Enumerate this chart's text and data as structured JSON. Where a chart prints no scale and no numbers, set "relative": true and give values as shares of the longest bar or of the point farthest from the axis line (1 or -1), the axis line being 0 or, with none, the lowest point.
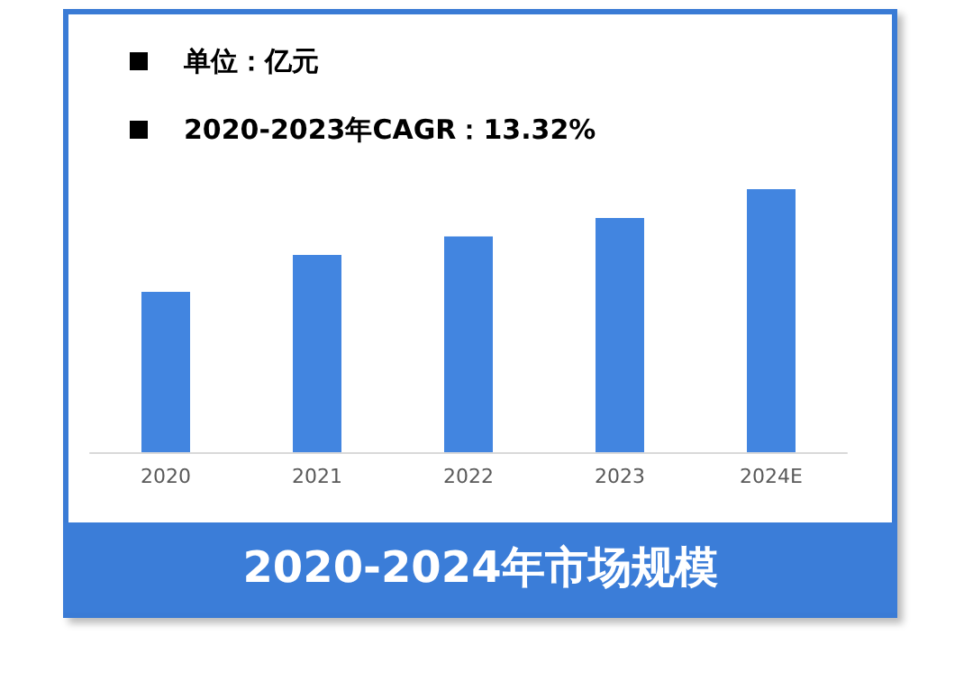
{
  "chart_data": {
    "type": "bar",
    "title": "2020-2024年市场规模",
    "annotations": [
      "单位：亿元",
      "2020-2023年CAGR：13.32%"
    ],
    "categories": [
      "2020",
      "2021",
      "2022",
      "2023",
      "2024E"
    ],
    "values": [
      0.61,
      0.75,
      0.82,
      0.89,
      1
    ],
    "color": "#4285e0",
    "relative": true
  }
}
